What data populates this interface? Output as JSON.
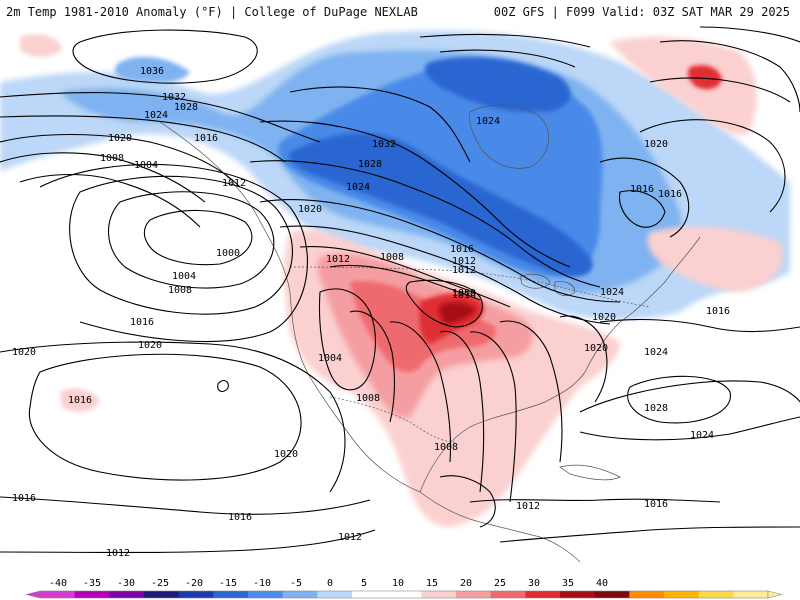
{
  "header": {
    "left_title": "2m Temp 1981-2010 Anomaly (°F) | College of DuPage NEXLAB",
    "right_title": "00Z GFS | F099 Valid: 03Z SAT MAR 29 2025"
  },
  "colorbar": {
    "labels": [
      "-40",
      "-35",
      "-30",
      "-25",
      "-20",
      "-15",
      "-10",
      "-5",
      "0",
      "5",
      "10",
      "15",
      "20",
      "25",
      "30",
      "35",
      "40"
    ],
    "colors": [
      "#d23ad2",
      "#b400b4",
      "#7c00a6",
      "#1c1c7a",
      "#1a3ba8",
      "#2b66d1",
      "#4a8ae8",
      "#7fb2f0",
      "#bcd7f7",
      "#ffffff",
      "#ffffff",
      "#fbd0d0",
      "#f49ea2",
      "#ef6a6e",
      "#e02d34",
      "#a80e16",
      "#7a0a10",
      "#ff8c00",
      "#ffb400",
      "#ffd84a",
      "#ffee99"
    ]
  },
  "isobars": [
    {
      "label": "1036"
    },
    {
      "label": "1032"
    },
    {
      "label": "1028"
    },
    {
      "label": "1024"
    },
    {
      "label": "1020"
    },
    {
      "label": "1016"
    },
    {
      "label": "1012"
    },
    {
      "label": "1008"
    },
    {
      "label": "1004"
    },
    {
      "label": "1000"
    },
    {
      "label": "1004"
    },
    {
      "label": "1008"
    },
    {
      "label": "1016"
    },
    {
      "label": "1020"
    },
    {
      "label": "1020"
    },
    {
      "label": "1016"
    },
    {
      "label": "1020"
    },
    {
      "label": "1016"
    },
    {
      "label": "1016"
    },
    {
      "label": "1012"
    },
    {
      "label": "1012"
    },
    {
      "label": "1032"
    },
    {
      "label": "1028"
    },
    {
      "label": "1024"
    },
    {
      "label": "1020"
    },
    {
      "label": "1016"
    },
    {
      "label": "1012"
    },
    {
      "label": "1008"
    },
    {
      "label": "1000"
    },
    {
      "label": "1004"
    },
    {
      "label": "1008"
    },
    {
      "label": "1008"
    },
    {
      "label": "1012"
    },
    {
      "label": "1012"
    },
    {
      "label": "1016"
    },
    {
      "label": "1016"
    },
    {
      "label": "1016"
    },
    {
      "label": "1020"
    },
    {
      "label": "1020"
    },
    {
      "label": "1024"
    },
    {
      "label": "1024"
    },
    {
      "label": "1024"
    },
    {
      "label": "1028"
    },
    {
      "label": "1024"
    },
    {
      "label": "1020"
    },
    {
      "label": "1016"
    },
    {
      "label": "1012"
    },
    {
      "label": "1016"
    }
  ]
}
